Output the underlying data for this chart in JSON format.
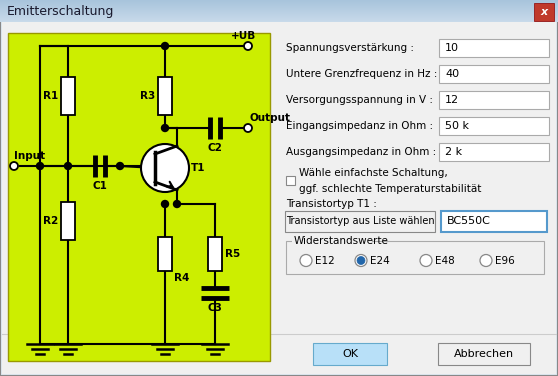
{
  "title": "Emitterschaltung",
  "bg_color": "#dde8f0",
  "dialog_bg": "#f0f0f0",
  "circuit_bg": "#ccee00",
  "title_bar_top": "#c8daea",
  "title_bar_bot": "#a8c4dc",
  "close_btn_color": "#cc3333",
  "labels": [
    "Spannungsverstärkung :",
    "Untere Grenzfrequenz in Hz :",
    "Versorgungsspannung in V :",
    "Eingangsimpedanz in Ohm :",
    "Ausgangsimpedanz in Ohm :"
  ],
  "values": [
    "10",
    "40",
    "12",
    "50 k",
    "2 k"
  ],
  "checkbox_line1": "Wähle einfachste Schaltung,",
  "checkbox_line2": "ggf. schlechte Temperaturstabilität",
  "transistor_label": "Transistortyp T1 :",
  "transistor_btn": "Transistortyp aus Liste wählen",
  "transistor_value": "BC550C",
  "widerstand_label": "Widerstandswerte",
  "radio_labels": [
    "E12",
    "E24",
    "E48",
    "E96"
  ],
  "radio_selected": 1,
  "ok_btn": "OK",
  "cancel_btn": "Abbrechen"
}
